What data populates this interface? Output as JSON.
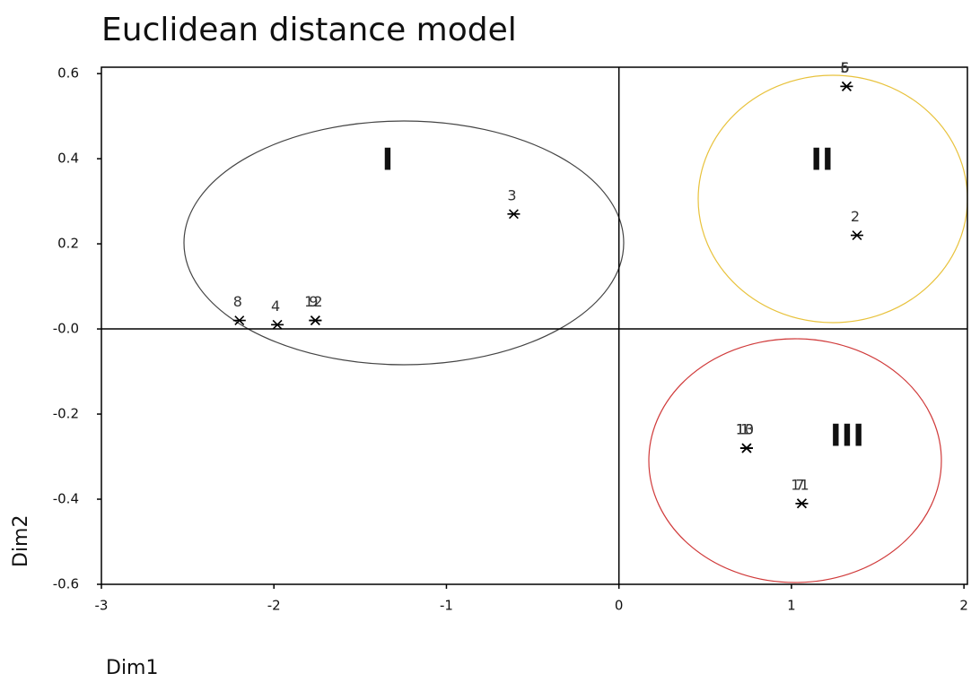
{
  "chart_data": {
    "type": "scatter",
    "title": "Euclidean distance model",
    "x_label": "Dim1",
    "y_label": "Dim2",
    "xlim": [
      -3,
      2.02
    ],
    "ylim": [
      -0.6,
      0.615
    ],
    "xticks": [
      -3,
      -2,
      -1,
      0,
      1,
      2
    ],
    "yticks": [
      0.6,
      0.4,
      0.2,
      {
        "value": 0,
        "label": "-0.0"
      },
      -0.2,
      -0.4,
      -0.6
    ],
    "annotations": [
      "I",
      "II",
      "III"
    ],
    "series": [
      {
        "color": "#000000",
        "labels": [
          "8",
          "4",
          "9",
          "12",
          "3",
          "5",
          "6",
          "2",
          "1",
          "10",
          "13",
          "7",
          "11"
        ],
        "x": [
          -2.2,
          -1.98,
          -1.76,
          -1.76,
          -0.61,
          1.32,
          1.32,
          1.38,
          0.74,
          0.74,
          0.74,
          1.06,
          1.06
        ],
        "y": [
          0.02,
          0.01,
          0.02,
          0.02,
          0.27,
          0.57,
          0.57,
          0.22,
          -0.28,
          -0.28,
          -0.28,
          -0.41,
          -0.41
        ]
      }
    ]
  }
}
